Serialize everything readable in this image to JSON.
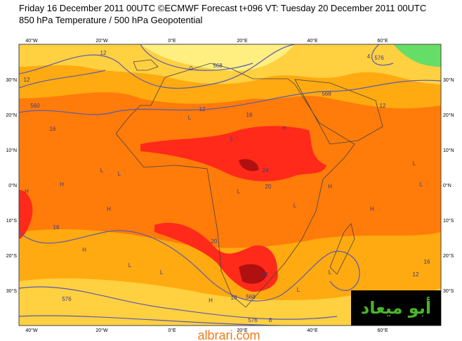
{
  "header": {
    "line1": "Friday 16 December 2011 00UTC ©ECMWF Forecast t+096 VT: Tuesday 20 December 2011 00UTC",
    "line2": "850 hPa Temperature / 500 hPa Geopotential"
  },
  "map": {
    "longitude_labels": [
      "40°W",
      "20°W",
      "0°E",
      "20°E",
      "40°E",
      "60°E"
    ],
    "latitude_labels": [
      "30°N",
      "20°N",
      "10°N",
      "0°N",
      "10°S",
      "20°S",
      "30°S"
    ],
    "contour_labels": [
      "12",
      "12",
      "560",
      "16",
      "0",
      "568",
      "12",
      "16",
      "24",
      "20",
      "16",
      "20",
      "24",
      "16",
      "568",
      "576",
      "8",
      "576",
      "12",
      "16",
      "12",
      "568",
      "4",
      "576"
    ],
    "pressure_marks": [
      "H",
      "H",
      "L",
      "L",
      "H",
      "H",
      "L",
      "L",
      "L",
      "H",
      "L",
      "H",
      "L",
      "L",
      "H",
      "L",
      "L",
      "H",
      "L",
      "L"
    ]
  },
  "logo": "أبو ميعاد",
  "watermark": "albrari.com"
}
